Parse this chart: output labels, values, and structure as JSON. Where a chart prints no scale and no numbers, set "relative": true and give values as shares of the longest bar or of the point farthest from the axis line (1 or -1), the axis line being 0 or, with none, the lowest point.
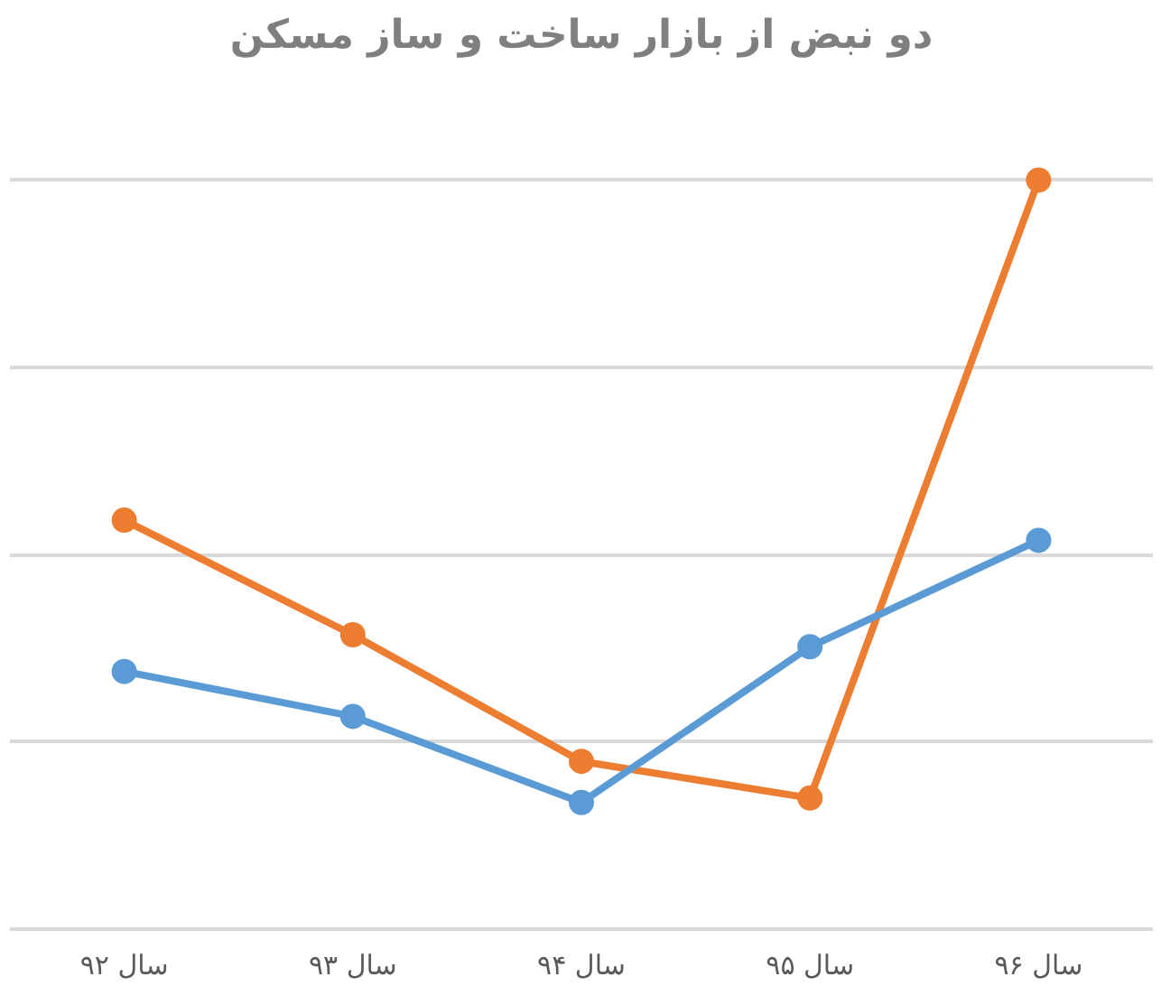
{
  "chart_data": {
    "type": "line",
    "title": "دو نبض از بازار ساخت و ساز مسکن",
    "categories": [
      "سال ۹۲",
      "سال ۹۳",
      "سال ۹۴",
      "سال ۹۵",
      "سال ۹۶"
    ],
    "relative": true,
    "grid": "y",
    "marker": "circle",
    "line_style": "solid",
    "series": [
      {
        "color": "#ed7d31",
        "values": [
          0.546,
          0.393,
          0.224,
          0.175,
          1
        ]
      },
      {
        "color": "#5b9bd5",
        "values": [
          0.344,
          0.284,
          0.169,
          0.377,
          0.519
        ]
      }
    ]
  }
}
